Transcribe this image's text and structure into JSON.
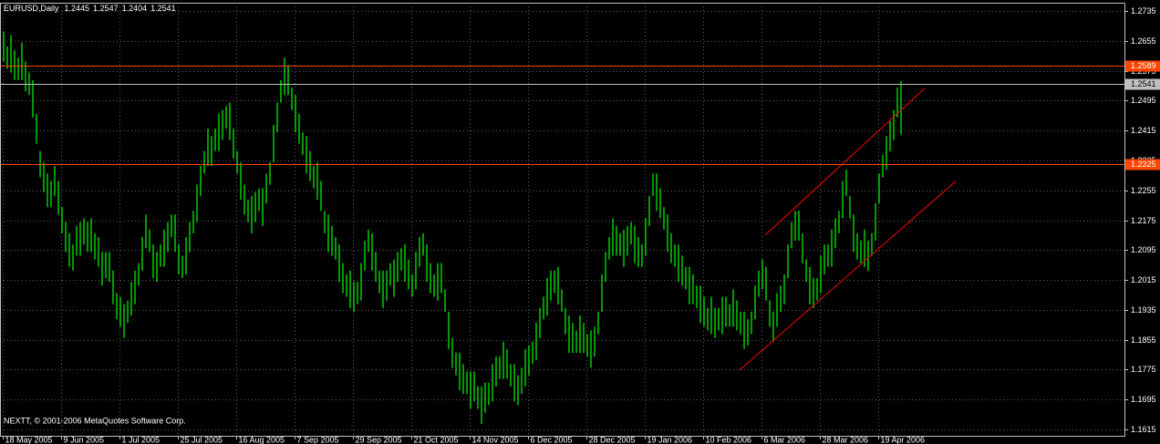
{
  "chart_data": {
    "type": "ohlc",
    "title": "EURUSD,Daily",
    "last_bar": [
      1.2445,
      1.2547,
      1.2404,
      1.2541
    ],
    "watermark": "NEXTT, © 2001-2006 MetaQuotes Software Corp.",
    "color": "#00ff00",
    "grid": true,
    "ylim": [
      1.1598,
      1.2757
    ],
    "yticks": [
      1.2735,
      1.2655,
      1.2575,
      1.2495,
      1.2415,
      1.2335,
      1.2255,
      1.2175,
      1.2095,
      1.2015,
      1.1935,
      1.1855,
      1.1775,
      1.1695,
      1.1615
    ],
    "levels": [
      {
        "value": 1.2589,
        "color": "#ff4500"
      },
      {
        "value": 1.2325,
        "color": "#ff4500"
      },
      {
        "value": 1.2541,
        "color": "#c0c0c0"
      }
    ],
    "trendlines": [
      {
        "color": "#ff0000",
        "x": [
          208.75,
          252.5
        ],
        "y": [
          1.2135,
          1.2528
        ]
      },
      {
        "color": "#ff0000",
        "x": [
          201.75,
          261
        ],
        "y": [
          1.1774,
          1.2279
        ]
      }
    ],
    "categories": [
      "18 May 2005",
      null,
      null,
      null,
      null,
      null,
      null,
      null,
      null,
      null,
      null,
      null,
      null,
      null,
      null,
      null,
      "9 Jun 2005",
      null,
      null,
      null,
      null,
      null,
      null,
      null,
      null,
      null,
      null,
      null,
      null,
      null,
      null,
      null,
      "1 Jul 2005",
      null,
      null,
      null,
      null,
      null,
      null,
      null,
      null,
      null,
      null,
      null,
      null,
      null,
      null,
      null,
      "25 Jul 2005",
      null,
      null,
      null,
      null,
      null,
      null,
      null,
      null,
      null,
      null,
      null,
      null,
      null,
      null,
      null,
      "16 Aug 2005",
      null,
      null,
      null,
      null,
      null,
      null,
      null,
      null,
      null,
      null,
      null,
      null,
      null,
      null,
      null,
      "7 Sep 2005",
      null,
      null,
      null,
      null,
      null,
      null,
      null,
      null,
      null,
      null,
      null,
      null,
      null,
      null,
      null,
      "29 Sep 2005",
      null,
      null,
      null,
      null,
      null,
      null,
      null,
      null,
      null,
      null,
      null,
      null,
      null,
      null,
      null,
      "21 Oct 2005",
      null,
      null,
      null,
      null,
      null,
      null,
      null,
      null,
      null,
      null,
      null,
      null,
      null,
      null,
      null,
      "14 Nov 2005",
      null,
      null,
      null,
      null,
      null,
      null,
      null,
      null,
      null,
      null,
      null,
      null,
      null,
      null,
      null,
      "6 Dec 2005",
      null,
      null,
      null,
      null,
      null,
      null,
      null,
      null,
      null,
      null,
      null,
      null,
      null,
      null,
      null,
      "28 Dec 2005",
      null,
      null,
      null,
      null,
      null,
      null,
      null,
      null,
      null,
      null,
      null,
      null,
      null,
      null,
      null,
      "19 Jan 2006",
      null,
      null,
      null,
      null,
      null,
      null,
      null,
      null,
      null,
      null,
      null,
      null,
      null,
      null,
      null,
      "10 Feb 2006",
      null,
      null,
      null,
      null,
      null,
      null,
      null,
      null,
      null,
      null,
      null,
      null,
      null,
      null,
      null,
      "6 Mar 2006",
      null,
      null,
      null,
      null,
      null,
      null,
      null,
      null,
      null,
      null,
      null,
      null,
      null,
      null,
      null,
      "28 Mar 2006",
      null,
      null,
      null,
      null,
      null,
      null,
      null,
      null,
      null,
      null,
      null,
      null,
      null,
      null,
      null,
      "19 Apr 2006",
      null,
      null,
      null,
      null,
      null,
      null
    ],
    "high": [
      1.268,
      1.264,
      1.267,
      1.263,
      1.261,
      1.265,
      1.26,
      1.257,
      1.255,
      1.246,
      1.236,
      1.233,
      1.23,
      1.228,
      1.232,
      1.228,
      1.221,
      1.217,
      1.214,
      1.211,
      1.216,
      1.217,
      1.218,
      1.217,
      1.218,
      1.214,
      1.213,
      1.209,
      1.209,
      1.209,
      1.204,
      1.198,
      1.197,
      1.195,
      1.196,
      1.201,
      1.204,
      1.206,
      1.213,
      1.219,
      1.215,
      1.211,
      1.209,
      1.211,
      1.215,
      1.217,
      1.219,
      1.219,
      1.211,
      1.208,
      1.213,
      1.217,
      1.22,
      1.227,
      1.232,
      1.236,
      1.242,
      1.24,
      1.242,
      1.246,
      1.247,
      1.248,
      1.249,
      1.242,
      1.236,
      1.233,
      1.227,
      1.223,
      1.224,
      1.225,
      1.226,
      1.226,
      1.23,
      1.233,
      1.243,
      1.249,
      1.255,
      1.261,
      1.259,
      1.253,
      1.251,
      1.246,
      1.241,
      1.24,
      1.236,
      1.232,
      1.233,
      1.228,
      1.22,
      1.219,
      1.216,
      1.213,
      1.211,
      1.206,
      1.203,
      1.204,
      1.201,
      1.201,
      1.206,
      1.212,
      1.215,
      1.214,
      1.209,
      1.204,
      1.204,
      1.204,
      1.206,
      1.207,
      1.209,
      1.21,
      1.211,
      1.207,
      1.203,
      1.209,
      1.213,
      1.214,
      1.211,
      1.206,
      1.203,
      1.206,
      1.206,
      1.199,
      1.193,
      1.186,
      1.182,
      1.182,
      1.179,
      1.177,
      1.177,
      1.177,
      1.173,
      1.173,
      1.174,
      1.174,
      1.179,
      1.181,
      1.181,
      1.185,
      1.183,
      1.179,
      1.179,
      1.176,
      1.178,
      1.183,
      1.184,
      1.185,
      1.19,
      1.194,
      1.197,
      1.202,
      1.204,
      1.204,
      1.205,
      1.199,
      1.194,
      1.192,
      1.19,
      1.188,
      1.192,
      1.19,
      1.187,
      1.188,
      1.189,
      1.193,
      1.203,
      1.209,
      1.213,
      1.218,
      1.216,
      1.214,
      1.215,
      1.216,
      1.217,
      1.216,
      1.213,
      1.211,
      1.218,
      1.224,
      1.23,
      1.23,
      1.226,
      1.221,
      1.219,
      1.214,
      1.211,
      1.211,
      1.208,
      1.205,
      1.205,
      1.203,
      1.2,
      1.2,
      1.197,
      1.194,
      1.197,
      1.194,
      1.194,
      1.197,
      1.197,
      1.195,
      1.199,
      1.196,
      1.193,
      1.193,
      1.191,
      1.193,
      1.2,
      1.204,
      1.207,
      1.205,
      1.196,
      1.193,
      1.198,
      1.2,
      1.203,
      1.211,
      1.217,
      1.22,
      1.22,
      1.214,
      1.207,
      1.205,
      1.202,
      1.202,
      1.208,
      1.211,
      1.211,
      1.215,
      1.218,
      1.22,
      1.228,
      1.231,
      1.224,
      1.219,
      1.214,
      1.212,
      1.215,
      1.212,
      1.214,
      1.222,
      1.23,
      1.235,
      1.24,
      1.244,
      1.247,
      1.253,
      1.2547
    ],
    "low": [
      1.26,
      1.258,
      1.257,
      1.255,
      1.255,
      1.255,
      1.252,
      1.251,
      1.245,
      1.238,
      1.229,
      1.225,
      1.221,
      1.221,
      1.224,
      1.219,
      1.214,
      1.209,
      1.205,
      1.204,
      1.208,
      1.208,
      1.211,
      1.209,
      1.209,
      1.207,
      1.205,
      1.2,
      1.202,
      1.201,
      1.195,
      1.191,
      1.189,
      1.186,
      1.19,
      1.192,
      1.195,
      1.2,
      1.204,
      1.21,
      1.209,
      1.202,
      1.201,
      1.205,
      1.205,
      1.209,
      1.213,
      1.209,
      1.203,
      1.202,
      1.203,
      1.209,
      1.214,
      1.217,
      1.224,
      1.23,
      1.232,
      1.232,
      1.236,
      1.236,
      1.239,
      1.242,
      1.239,
      1.234,
      1.23,
      1.223,
      1.219,
      1.217,
      1.214,
      1.217,
      1.22,
      1.216,
      1.222,
      1.227,
      1.233,
      1.241,
      1.249,
      1.251,
      1.251,
      1.247,
      1.241,
      1.238,
      1.235,
      1.23,
      1.228,
      1.226,
      1.223,
      1.22,
      1.214,
      1.209,
      1.208,
      1.207,
      1.201,
      1.198,
      1.197,
      1.194,
      1.193,
      1.195,
      1.196,
      1.204,
      1.209,
      1.204,
      1.201,
      1.198,
      1.194,
      1.196,
      1.2,
      1.197,
      1.201,
      1.204,
      1.201,
      1.199,
      1.197,
      1.199,
      1.205,
      1.208,
      1.201,
      1.198,
      1.197,
      1.196,
      1.198,
      1.193,
      1.183,
      1.178,
      1.176,
      1.172,
      1.171,
      1.171,
      1.167,
      1.169,
      1.167,
      1.163,
      1.166,
      1.168,
      1.169,
      1.173,
      1.175,
      1.175,
      1.175,
      1.173,
      1.169,
      1.168,
      1.171,
      1.173,
      1.176,
      1.179,
      1.18,
      1.186,
      1.191,
      1.192,
      1.196,
      1.198,
      1.195,
      1.193,
      1.187,
      1.182,
      1.182,
      1.182,
      1.182,
      1.182,
      1.181,
      1.178,
      1.181,
      1.187,
      1.193,
      1.201,
      1.207,
      1.208,
      1.208,
      1.208,
      1.205,
      1.208,
      1.211,
      1.206,
      1.205,
      1.205,
      1.208,
      1.216,
      1.224,
      1.22,
      1.218,
      1.215,
      1.209,
      1.206,
      1.205,
      1.201,
      1.2,
      1.199,
      1.195,
      1.195,
      1.194,
      1.19,
      1.189,
      1.188,
      1.187,
      1.186,
      1.188,
      1.187,
      1.189,
      1.189,
      1.189,
      1.188,
      1.187,
      1.183,
      1.184,
      1.187,
      1.191,
      1.197,
      1.199,
      1.196,
      1.189,
      1.185,
      1.189,
      1.193,
      1.195,
      1.202,
      1.21,
      1.212,
      1.212,
      1.206,
      1.201,
      1.195,
      1.194,
      1.196,
      1.198,
      1.203,
      1.205,
      1.205,
      1.21,
      1.214,
      1.218,
      1.224,
      1.218,
      1.209,
      1.207,
      1.206,
      1.205,
      1.204,
      1.208,
      1.212,
      1.222,
      1.229,
      1.231,
      1.236,
      1.239,
      1.245,
      1.2404
    ]
  }
}
